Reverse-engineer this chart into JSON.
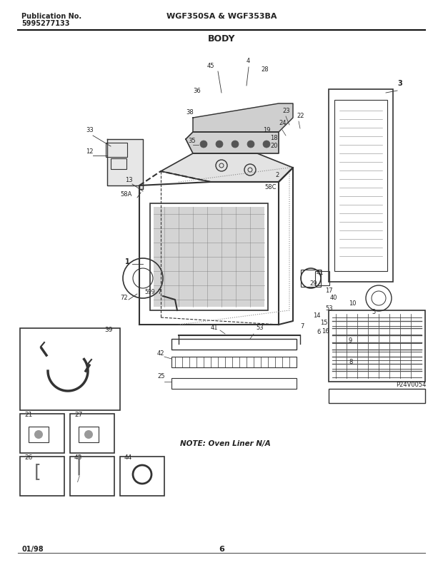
{
  "title_line1": "Publication No.",
  "title_line2": "5995277133",
  "title_center": "WGF350SA & WGF353BA",
  "title_section": "BODY",
  "date": "01/98",
  "page": "6",
  "note": "NOTE: Oven Liner N/A",
  "part_code": "P24V0054",
  "bg_color": "#ffffff",
  "line_color": "#222222",
  "header_line_color": "#111111",
  "footer_line_color": "#555555",
  "diagram_color": "#333333",
  "box_color": "#444444",
  "figsize": [
    6.2,
    7.92
  ],
  "dpi": 100
}
